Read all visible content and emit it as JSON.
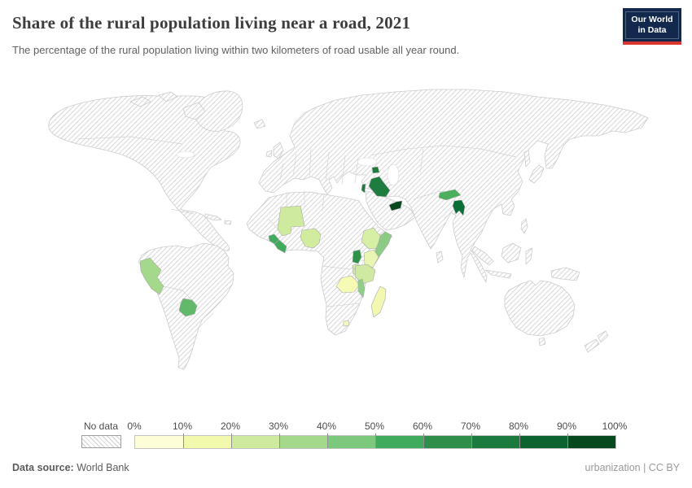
{
  "header": {
    "title": "Share of the rural population living near a road, 2021",
    "subtitle": "The percentage of the rural population living within two kilometers of road usable all year round.",
    "logo": {
      "line1": "Our World",
      "line2": "in Data"
    }
  },
  "legend": {
    "no_data_label": "No data",
    "ticks": [
      "0%",
      "10%",
      "20%",
      "30%",
      "40%",
      "50%",
      "60%",
      "70%",
      "80%",
      "90%",
      "100%"
    ]
  },
  "footer": {
    "source_label": "Data source:",
    "source_value": "World Bank",
    "attribution": "urbanization | CC BY"
  },
  "chart_data": {
    "type": "choropleth_map",
    "title": "Share of the rural population living near a road, 2021",
    "subtitle": "The percentage of the rural population living within two kilometers of road usable all year round.",
    "year": 2021,
    "unit": "% of rural population within 2 km of an all-season road",
    "color_scheme": "YlGn (light yellow to dark green), 10 bins of 10%",
    "no_data_style": "diagonal gray hatching on white",
    "legend_bins": [
      {
        "range": "0-10%",
        "color": "#fdfdd8"
      },
      {
        "range": "10-20%",
        "color": "#f2f9ad"
      },
      {
        "range": "20-30%",
        "color": "#cdea9e"
      },
      {
        "range": "30-40%",
        "color": "#a4d88a"
      },
      {
        "range": "40-50%",
        "color": "#7cc87c"
      },
      {
        "range": "50-60%",
        "color": "#41ab5d"
      },
      {
        "range": "60-70%",
        "color": "#2f8f4a"
      },
      {
        "range": "70-80%",
        "color": "#1b7a3e"
      },
      {
        "range": "80-90%",
        "color": "#0d632f"
      },
      {
        "range": "90-100%",
        "color": "#07491f"
      }
    ],
    "countries": [
      {
        "name": "Peru",
        "bin": "30-40%",
        "color": "#a4d88a"
      },
      {
        "name": "Paraguay",
        "bin": "40-50%",
        "color": "#62b96a"
      },
      {
        "name": "Mali",
        "bin": "20-30%",
        "color": "#cdea9e"
      },
      {
        "name": "Sierra Leone",
        "bin": "50-60%",
        "color": "#41ab5d"
      },
      {
        "name": "Liberia",
        "bin": "50-60%",
        "color": "#41ab5d"
      },
      {
        "name": "Nigeria",
        "bin": "20-30%",
        "color": "#d2ec9f"
      },
      {
        "name": "Ethiopia",
        "bin": "20-30%",
        "color": "#d7efa5"
      },
      {
        "name": "Somalia",
        "bin": "40-50%",
        "color": "#8bcb84"
      },
      {
        "name": "Kenya",
        "bin": "10-20%",
        "color": "#e9f5b3"
      },
      {
        "name": "Uganda",
        "bin": "60-70%",
        "color": "#2e9348"
      },
      {
        "name": "Rwanda",
        "bin": "20-30%",
        "color": "#cfe9a0"
      },
      {
        "name": "Burundi",
        "bin": "20-30%",
        "color": "#cfe9a0"
      },
      {
        "name": "Tanzania",
        "bin": "20-30%",
        "color": "#cfe9a2"
      },
      {
        "name": "Zambia",
        "bin": "10-20%",
        "color": "#f5fab5"
      },
      {
        "name": "Malawi",
        "bin": "40-50%",
        "color": "#8fcf8a"
      },
      {
        "name": "Madagascar",
        "bin": "10-20%",
        "color": "#f2f8b2"
      },
      {
        "name": "Lesotho",
        "bin": "10-20%",
        "color": "#f5f9bb"
      },
      {
        "name": "Iraq",
        "bin": "70-80%",
        "color": "#1e7c40"
      },
      {
        "name": "Armenia",
        "bin": "70-80%",
        "color": "#1e7c40"
      },
      {
        "name": "Israel",
        "bin": "70-80%",
        "color": "#1e7c40"
      },
      {
        "name": "United Arab Emirates",
        "bin": "90-100%",
        "color": "#07481f"
      },
      {
        "name": "Nepal",
        "bin": "50-60%",
        "color": "#4caf5e"
      },
      {
        "name": "Bangladesh",
        "bin": "80-90%",
        "color": "#0a6f37"
      }
    ],
    "all_other_countries": "No data (hatched)"
  }
}
